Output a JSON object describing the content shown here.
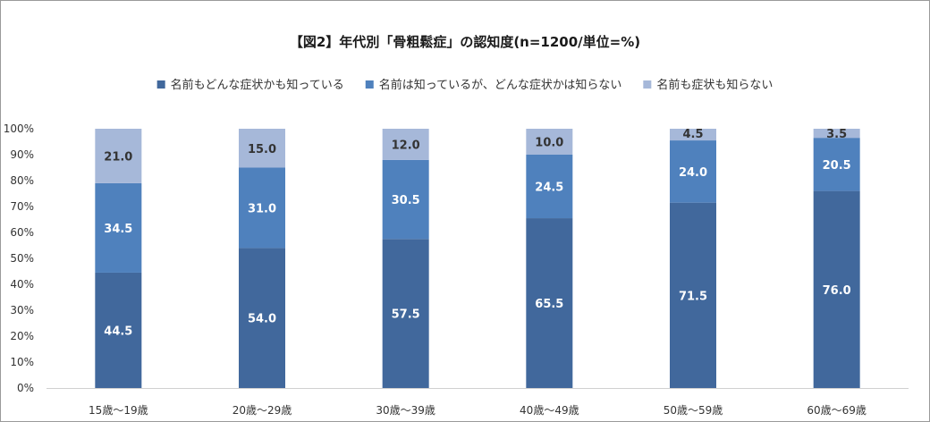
{
  "chart_data": {
    "type": "bar",
    "stacked": true,
    "title": "【図2】年代別「骨粗鬆症」の認知度(n=1200/単位=%)",
    "categories": [
      "15歳～19歳",
      "20歳～29歳",
      "30歳～39歳",
      "40歳～49歳",
      "50歳～59歳",
      "60歳～69歳"
    ],
    "series": [
      {
        "name": "名前もどんな症状かも知っている",
        "values": [
          44.5,
          54.0,
          57.5,
          65.5,
          71.5,
          76.0
        ],
        "color": "#41689c",
        "label_color": "#ffffff"
      },
      {
        "name": "名前は知っているが、どんな症状かは知らない",
        "values": [
          34.5,
          31.0,
          30.5,
          24.5,
          24.0,
          20.5
        ],
        "color": "#4f81bd",
        "label_color": "#ffffff"
      },
      {
        "name": "名前も症状も知らない",
        "values": [
          21.0,
          15.0,
          12.0,
          10.0,
          4.5,
          3.5
        ],
        "color": "#a6b8d9",
        "label_color": "#333333"
      }
    ],
    "ylim": [
      0,
      100
    ],
    "yticks": [
      "0%",
      "10%",
      "20%",
      "30%",
      "40%",
      "50%",
      "60%",
      "70%",
      "80%",
      "90%",
      "100%"
    ],
    "legend_position": "top",
    "grid": false
  }
}
